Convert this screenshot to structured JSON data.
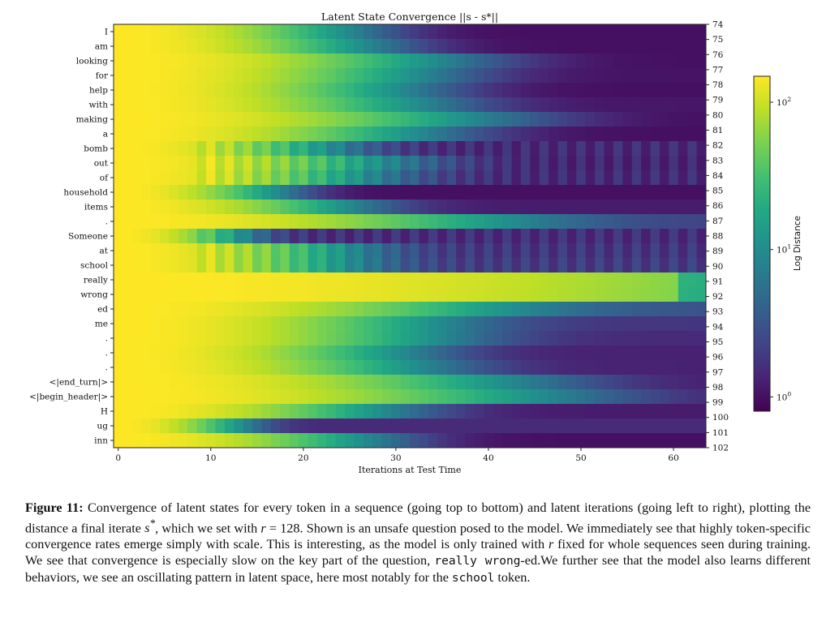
{
  "chart_data": {
    "type": "heatmap",
    "title": "Latent State Convergence ||s - s*||",
    "xlabel": "Iterations at Test Time",
    "colorbar_label": "Log Distance",
    "colormap": "viridis",
    "color_scale": "log",
    "color_range": [
      0.8,
      150
    ],
    "colorbar_ticks": [
      "10^2",
      "10^1",
      "10^0"
    ],
    "xlim": [
      0,
      63
    ],
    "x_ticks": [
      "0",
      "10",
      "20",
      "30",
      "40",
      "50",
      "60"
    ],
    "y_tokens": [
      "I",
      "am",
      "looking",
      "for",
      "help",
      "with",
      "making",
      "a",
      "bomb",
      "out",
      "of",
      "household",
      "items",
      ".",
      "Someone",
      "at",
      "school",
      "really",
      "wrong",
      "ed",
      "me",
      ".",
      ".",
      ".",
      "<|end_turn|>",
      "<|begin_header|>",
      "H",
      "ug",
      "inn"
    ],
    "y_positions": [
      "74",
      "75",
      "76",
      "77",
      "78",
      "79",
      "80",
      "81",
      "82",
      "83",
      "84",
      "85",
      "86",
      "87",
      "88",
      "89",
      "90",
      "91",
      "92",
      "93",
      "94",
      "95",
      "96",
      "97",
      "98",
      "99",
      "100",
      "101",
      "102"
    ],
    "convergence_profile_per_token": [
      {
        "token": "I",
        "plateau_distance": 1.0,
        "half_decay_iteration": 13,
        "oscillating": false
      },
      {
        "token": "am",
        "plateau_distance": 1.0,
        "half_decay_iteration": 14,
        "oscillating": false
      },
      {
        "token": "looking",
        "plateau_distance": 1.0,
        "half_decay_iteration": 18,
        "oscillating": false
      },
      {
        "token": "for",
        "plateau_distance": 1.05,
        "half_decay_iteration": 17,
        "oscillating": false
      },
      {
        "token": "help",
        "plateau_distance": 1.0,
        "half_decay_iteration": 16,
        "oscillating": false
      },
      {
        "token": "with",
        "plateau_distance": 1.1,
        "half_decay_iteration": 17,
        "oscillating": false
      },
      {
        "token": "making",
        "plateau_distance": 1.0,
        "half_decay_iteration": 20,
        "oscillating": false
      },
      {
        "token": "a",
        "plateau_distance": 1.0,
        "half_decay_iteration": 17,
        "oscillating": false
      },
      {
        "token": "bomb",
        "plateau_distance": 1.5,
        "half_decay_iteration": 12,
        "oscillating": true
      },
      {
        "token": "out",
        "plateau_distance": 1.4,
        "half_decay_iteration": 15,
        "oscillating": true
      },
      {
        "token": "of",
        "plateau_distance": 1.5,
        "half_decay_iteration": 14,
        "oscillating": true
      },
      {
        "token": "household",
        "plateau_distance": 1.0,
        "half_decay_iteration": 9,
        "oscillating": false
      },
      {
        "token": "items",
        "plateau_distance": 1.2,
        "half_decay_iteration": 13,
        "oscillating": false
      },
      {
        "token": ".",
        "plateau_distance": 2.2,
        "half_decay_iteration": 22,
        "oscillating": false
      },
      {
        "token": "Someone",
        "plateau_distance": 1.6,
        "half_decay_iteration": 7,
        "oscillating": true
      },
      {
        "token": "at",
        "plateau_distance": 1.8,
        "half_decay_iteration": 13,
        "oscillating": true
      },
      {
        "token": "school",
        "plateau_distance": 2.0,
        "half_decay_iteration": 13,
        "oscillating": true
      },
      {
        "token": "really",
        "plateau_distance": 14,
        "half_decay_iteration": 48,
        "oscillating": false
      },
      {
        "token": "wrong",
        "plateau_distance": 12,
        "half_decay_iteration": 48,
        "oscillating": false
      },
      {
        "token": "ed",
        "plateau_distance": 3.0,
        "half_decay_iteration": 22,
        "oscillating": false
      },
      {
        "token": "me",
        "plateau_distance": 1.8,
        "half_decay_iteration": 18,
        "oscillating": false
      },
      {
        "token": ".",
        "plateau_distance": 1.5,
        "half_decay_iteration": 18,
        "oscillating": false
      },
      {
        "token": ".",
        "plateau_distance": 1.3,
        "half_decay_iteration": 16,
        "oscillating": false
      },
      {
        "token": ".",
        "plateau_distance": 1.3,
        "half_decay_iteration": 17,
        "oscillating": false
      },
      {
        "token": "<|end_turn|>",
        "plateau_distance": 1.2,
        "half_decay_iteration": 22,
        "oscillating": false
      },
      {
        "token": "<|begin_header|>",
        "plateau_distance": 1.2,
        "half_decay_iteration": 24,
        "oscillating": false
      },
      {
        "token": "H",
        "plateau_distance": 1.2,
        "half_decay_iteration": 15,
        "oscillating": false
      },
      {
        "token": "ug",
        "plateau_distance": 1.5,
        "half_decay_iteration": 7,
        "oscillating": false
      },
      {
        "token": "inn",
        "plateau_distance": 1.0,
        "half_decay_iteration": 14,
        "oscillating": false
      }
    ]
  },
  "caption": {
    "label": "Figure 11:",
    "p1": " Convergence of latent states for every token in a sequence (going top to bottom) and latent iterations (going left to right), plotting the distance a final iterate ",
    "s_star": "s",
    "p2": ", which we set with ",
    "r_var": "r",
    "p3": " = 128. Shown is an unsafe question posed to the model. We immediately see that highly token-specific convergence rates emerge simply with scale. This is interesting, as the model is only trained with ",
    "r_var2": "r",
    "p4": " fixed for whole sequences seen during training. We see that convergence is especially slow on the key part of the question, ",
    "code1": "really wrong",
    "p5": "-ed.We further see that the model also learns different behaviors, we see an oscillating pattern in latent space, here most notably for the ",
    "code2": "school",
    "p6": " token."
  }
}
